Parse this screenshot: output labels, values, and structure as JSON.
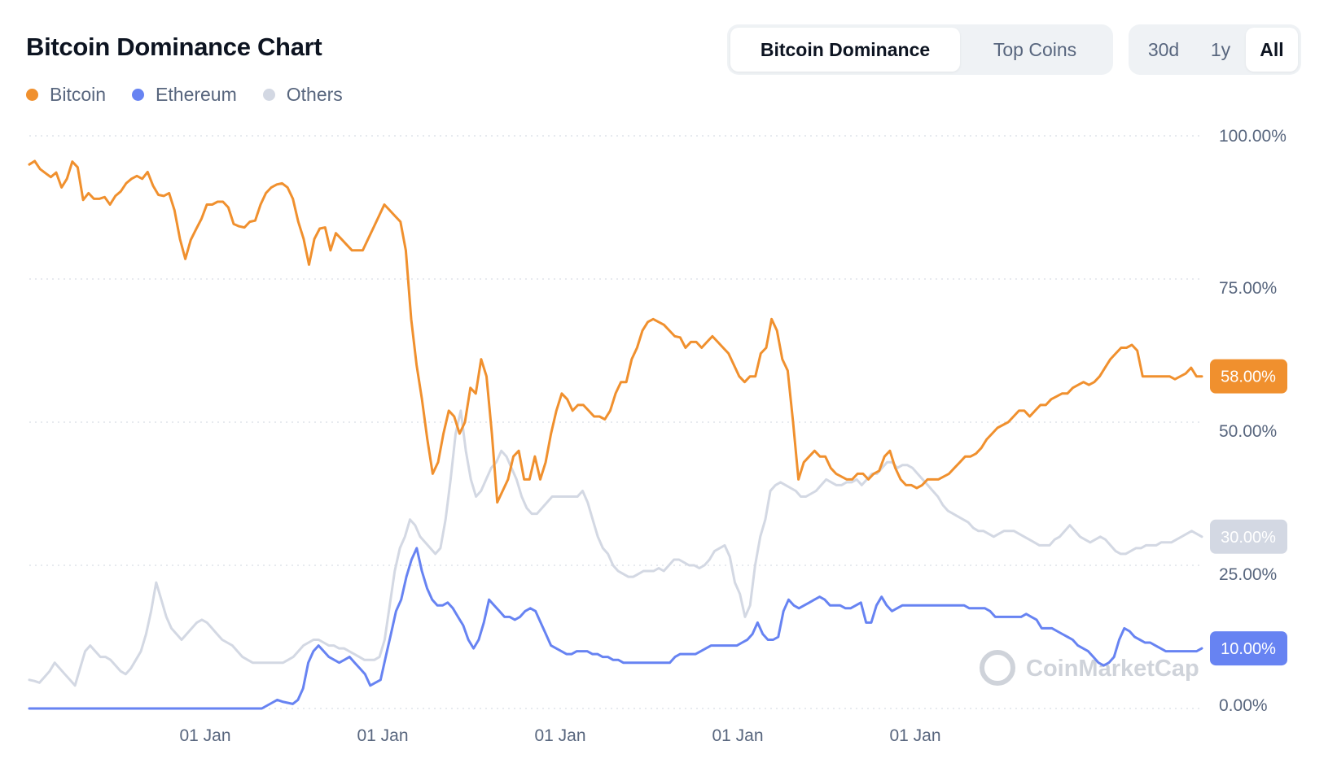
{
  "header": {
    "title": "Bitcoin Dominance Chart",
    "tabs": [
      {
        "label": "Bitcoin Dominance",
        "active": true
      },
      {
        "label": "Top Coins",
        "active": false
      }
    ],
    "ranges": [
      {
        "label": "30d",
        "active": false
      },
      {
        "label": "1y",
        "active": false
      },
      {
        "label": "All",
        "active": true
      }
    ]
  },
  "watermark": "CoinMarketCap",
  "colors": {
    "bitcoin": "#f0902e",
    "ethereum": "#6783f2",
    "others": "#d3d8e3",
    "grid": "#dfe3ea"
  },
  "chart_data": {
    "type": "line",
    "ylim": [
      0,
      100
    ],
    "y_ticks": [
      "100.00%",
      "75.00%",
      "50.00%",
      "25.00%",
      "0.00%"
    ],
    "x_ticks": [
      "01 Jan",
      "01 Jan",
      "01 Jan",
      "01 Jan",
      "01 Jan"
    ],
    "legend_position": "top-left",
    "grid": true,
    "current_labels": [
      "58.00%",
      "30.00%",
      "10.00%"
    ],
    "series": [
      {
        "name": "Bitcoin",
        "values": [
          95.0,
          95.6,
          94.2,
          93.5,
          92.8,
          93.6,
          91.0,
          92.5,
          95.5,
          94.5,
          88.8,
          90.0,
          89.0,
          89.0,
          89.3,
          88.0,
          89.5,
          90.3,
          91.7,
          92.5,
          93.0,
          92.5,
          93.7,
          91.3,
          89.7,
          89.5,
          90.0,
          87.0,
          82.0,
          78.5,
          81.8,
          83.7,
          85.5,
          88.0,
          88.0,
          88.5,
          88.5,
          87.5,
          84.6,
          84.2,
          84.0,
          85.0,
          85.2,
          88.0,
          90.0,
          91.0,
          91.5,
          91.7,
          91.0,
          89.0,
          85.0,
          82.0,
          77.5,
          82.0,
          83.8,
          84.0,
          80.0,
          83.0,
          82.0,
          81.0,
          80.0,
          80.0,
          80.0,
          82.0,
          84.0,
          86.0,
          88.0,
          87.0,
          86.0,
          85.0,
          80.0,
          68.0,
          60.0,
          54.0,
          47.0,
          41.0,
          43.0,
          48.0,
          52.0,
          51.0,
          48.0,
          50.0,
          56.0,
          55.0,
          61.0,
          58.0,
          48.0,
          36.0,
          38.0,
          40.0,
          44.0,
          45.0,
          40.0,
          40.0,
          44.0,
          40.0,
          43.0,
          48.0,
          52.0,
          55.0,
          54.0,
          52.0,
          53.0,
          53.0,
          52.0,
          51.0,
          51.0,
          50.5,
          52.0,
          55.0,
          57.0,
          57.0,
          61.0,
          63.0,
          66.0,
          67.5,
          68.0,
          67.5,
          67.0,
          66.0,
          65.0,
          64.8,
          63.0,
          64.0,
          64.0,
          63.0,
          64.0,
          65.0,
          64.0,
          63.0,
          62.0,
          60.0,
          58.0,
          57.0,
          58.0,
          58.0,
          62.0,
          63.0,
          68.0,
          66.0,
          61.0,
          59.0,
          50.0,
          40.0,
          43.0,
          44.0,
          45.0,
          44.0,
          44.0,
          42.0,
          41.0,
          40.5,
          40.0,
          40.0,
          41.0,
          41.0,
          40.0,
          41.0,
          41.5,
          44.0,
          45.0,
          42.0,
          40.0,
          39.0,
          39.0,
          38.5,
          39.0,
          40.0,
          40.0,
          40.0,
          40.5,
          41.0,
          42.0,
          43.0,
          44.0,
          44.0,
          44.5,
          45.5,
          47.0,
          48.0,
          49.0,
          49.5,
          50.0,
          51.0,
          52.0,
          52.0,
          51.0,
          52.0,
          53.0,
          53.0,
          54.0,
          54.5,
          55.0,
          55.0,
          56.0,
          56.5,
          57.0,
          56.5,
          57.0,
          58.0,
          59.5,
          61.0,
          62.0,
          63.0,
          63.0,
          63.5,
          62.5,
          58.0,
          58.0,
          58.0,
          58.0,
          58.0,
          58.0,
          57.5,
          58.0,
          58.5,
          59.5,
          58.0,
          58.0
        ]
      },
      {
        "name": "Ethereum",
        "values": [
          0,
          0,
          0,
          0,
          0,
          0,
          0,
          0,
          0,
          0,
          0,
          0,
          0,
          0,
          0,
          0,
          0,
          0,
          0,
          0,
          0,
          0,
          0,
          0,
          0,
          0,
          0,
          0,
          0,
          0,
          0,
          0,
          0,
          0,
          0,
          0,
          0,
          0,
          0,
          0,
          0,
          0,
          0,
          0,
          0,
          0,
          0.5,
          1.0,
          1.5,
          1.2,
          1.0,
          0.8,
          1.5,
          3.5,
          8.0,
          10.0,
          11.0,
          10.0,
          9.0,
          8.5,
          8.0,
          8.5,
          9.0,
          8.0,
          7.0,
          6.0,
          4.0,
          4.5,
          5.0,
          9.0,
          13.0,
          17.0,
          19.0,
          23.0,
          26.0,
          28.0,
          24.0,
          21.0,
          19.0,
          18.0,
          18.0,
          18.5,
          17.5,
          16.0,
          14.5,
          12.0,
          10.5,
          12.0,
          15.0,
          19.0,
          18.0,
          17.0,
          16.0,
          16.0,
          15.5,
          16.0,
          17.0,
          17.5,
          17.0,
          15.0,
          13.0,
          11.0,
          10.5,
          10.0,
          9.5,
          9.5,
          10.0,
          10.0,
          10.0,
          9.5,
          9.5,
          9.0,
          9.0,
          8.5,
          8.5,
          8.0,
          8.0,
          8.0,
          8.0,
          8.0,
          8.0,
          8.0,
          8.0,
          8.0,
          8.0,
          9.0,
          9.5,
          9.5,
          9.5,
          9.5,
          10.0,
          10.5,
          11.0,
          11.0,
          11.0,
          11.0,
          11.0,
          11.0,
          11.5,
          12.0,
          13.0,
          15.0,
          13.0,
          12.0,
          12.0,
          12.5,
          17.0,
          19.0,
          18.0,
          17.5,
          18.0,
          18.5,
          19.0,
          19.5,
          19.0,
          18.0,
          18.0,
          18.0,
          17.5,
          17.5,
          18.0,
          18.5,
          15.0,
          15.0,
          18.0,
          19.5,
          18.0,
          17.0,
          17.5,
          18.0,
          18.0,
          18.0,
          18.0,
          18.0,
          18.0,
          18.0,
          18.0,
          18.0,
          18.0,
          18.0,
          18.0,
          18.0,
          17.5,
          17.5,
          17.5,
          17.5,
          17.0,
          16.0,
          16.0,
          16.0,
          16.0,
          16.0,
          16.0,
          16.5,
          16.0,
          15.5,
          14.0,
          14.0,
          14.0,
          13.5,
          13.0,
          12.5,
          12.0,
          11.0,
          10.5,
          10.0,
          9.0,
          8.0,
          7.5,
          8.0,
          9.0,
          12.0,
          14.0,
          13.5,
          12.5,
          12.0,
          11.5,
          11.5,
          11.0,
          10.5,
          10.0,
          10.0,
          10.0,
          10.0,
          10.0,
          10.0,
          10.0,
          10.5
        ]
      },
      {
        "name": "Others",
        "values": [
          5.0,
          4.8,
          4.5,
          5.5,
          6.5,
          8.0,
          7.0,
          6.0,
          5.0,
          4.0,
          7.0,
          10.0,
          11.0,
          10.0,
          9.0,
          9.0,
          8.5,
          7.5,
          6.5,
          6.0,
          7.0,
          8.5,
          10.0,
          13.0,
          17.0,
          22.0,
          19.0,
          16.0,
          14.0,
          13.0,
          12.0,
          13.0,
          14.0,
          15.0,
          15.5,
          15.0,
          14.0,
          13.0,
          12.0,
          11.5,
          11.0,
          10.0,
          9.0,
          8.5,
          8.0,
          8.0,
          8.0,
          8.0,
          8.0,
          8.0,
          8.0,
          8.5,
          9.0,
          10.0,
          11.0,
          11.5,
          12.0,
          12.0,
          11.5,
          11.0,
          11.0,
          10.5,
          10.5,
          10.0,
          9.5,
          9.0,
          8.5,
          8.5,
          8.5,
          9.0,
          12.0,
          18.0,
          24.0,
          28.0,
          30.0,
          33.0,
          32.0,
          30.0,
          29.0,
          28.0,
          27.0,
          28.0,
          33.0,
          40.0,
          48.0,
          52.0,
          45.0,
          40.0,
          37.0,
          38.0,
          40.0,
          42.0,
          43.0,
          45.0,
          44.0,
          42.0,
          40.0,
          37.0,
          35.0,
          34.0,
          34.0,
          35.0,
          36.0,
          37.0,
          37.0,
          37.0,
          37.0,
          37.0,
          37.0,
          38.0,
          36.0,
          33.0,
          30.0,
          28.0,
          27.0,
          25.0,
          24.0,
          23.5,
          23.0,
          23.0,
          23.5,
          24.0,
          24.0,
          24.0,
          24.5,
          24.0,
          25.0,
          26.0,
          26.0,
          25.5,
          25.0,
          25.0,
          24.5,
          25.0,
          26.0,
          27.5,
          28.0,
          28.5,
          26.5,
          22.0,
          20.0,
          16.0,
          18.0,
          25.0,
          30.0,
          33.0,
          38.0,
          39.0,
          39.5,
          39.0,
          38.5,
          38.0,
          37.0,
          37.0,
          37.5,
          38.0,
          39.0,
          40.0,
          39.5,
          39.0,
          39.0,
          39.5,
          39.5,
          40.0,
          39.0,
          40.0,
          41.0,
          41.0,
          42.0,
          43.0,
          43.0,
          42.0,
          42.5,
          42.5,
          42.0,
          41.0,
          40.0,
          39.0,
          38.0,
          37.0,
          35.5,
          34.5,
          34.0,
          33.5,
          33.0,
          32.5,
          31.5,
          31.0,
          31.0,
          30.5,
          30.0,
          30.5,
          31.0,
          31.0,
          31.0,
          30.5,
          30.0,
          29.5,
          29.0,
          28.5,
          28.5,
          28.5,
          29.5,
          30.0,
          31.0,
          32.0,
          31.0,
          30.0,
          29.5,
          29.0,
          29.5,
          30.0,
          29.5,
          28.5,
          27.5,
          27.0,
          27.0,
          27.5,
          28.0,
          28.0,
          28.5,
          28.5,
          28.5,
          29.0,
          29.0,
          29.0,
          29.5,
          30.0,
          30.5,
          31.0,
          30.5,
          30.0
        ]
      }
    ]
  }
}
